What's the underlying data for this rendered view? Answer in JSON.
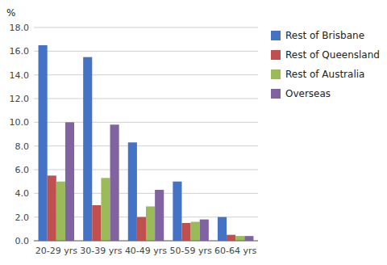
{
  "chart_data": {
    "type": "bar",
    "ylabel": "%",
    "categories": [
      "20-29 yrs",
      "30-39 yrs",
      "40-49 yrs",
      "50-59 yrs",
      "60-64 yrs"
    ],
    "series": [
      {
        "name": "Rest of Brisbane",
        "color": "#4472C4",
        "values": [
          16.5,
          15.5,
          8.3,
          5.0,
          2.0
        ]
      },
      {
        "name": "Rest of Queensland",
        "color": "#C0504D",
        "values": [
          5.5,
          3.0,
          2.0,
          1.5,
          0.5
        ]
      },
      {
        "name": "Rest of Australia",
        "color": "#9BBB59",
        "values": [
          5.0,
          5.3,
          2.9,
          1.6,
          0.4
        ]
      },
      {
        "name": "Overseas",
        "color": "#8064A2",
        "values": [
          10.0,
          9.8,
          4.3,
          1.8,
          0.4
        ]
      }
    ],
    "ylim": [
      0,
      18.0
    ],
    "yticks": [
      {
        "value": 0.0,
        "label": "0.0"
      },
      {
        "value": 2.0,
        "label": "2.0"
      },
      {
        "value": 4.0,
        "label": "4.0"
      },
      {
        "value": 6.0,
        "label": "6.0"
      },
      {
        "value": 8.0,
        "label": "8.0"
      },
      {
        "value": 10.0,
        "label": "10.0"
      },
      {
        "value": 12.0,
        "label": "12.0"
      },
      {
        "value": 14.0,
        "label": "14.0"
      },
      {
        "value": 16.0,
        "label": "16.0"
      },
      {
        "value": 18.0,
        "label": "18.0"
      }
    ],
    "grid": true,
    "legend": "right"
  }
}
